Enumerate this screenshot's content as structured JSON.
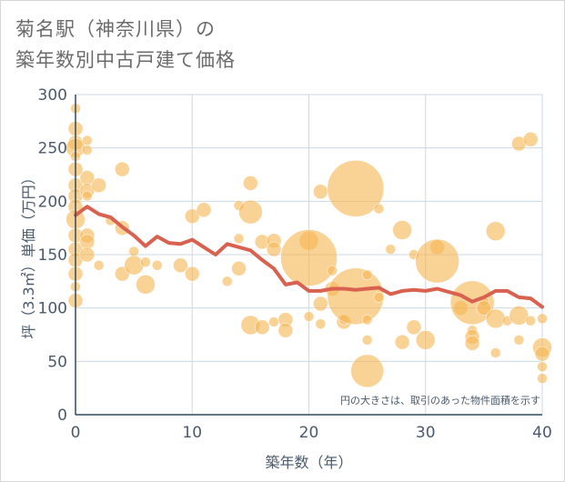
{
  "title": {
    "line1": "菊名駅（神奈川県）の",
    "line2": "築年数別中古戸建て価格"
  },
  "chart_data": {
    "type": "scatter",
    "xlabel": "築年数（年）",
    "ylabel": "坪（3.3㎡）単価（万円）",
    "xlim": [
      0,
      40
    ],
    "ylim": [
      0,
      300
    ],
    "xticks": [
      0,
      10,
      20,
      30,
      40
    ],
    "yticks": [
      0,
      50,
      100,
      150,
      200,
      250,
      300
    ],
    "note": "円の大きさは、取引のあった物件面積を示す",
    "colors": {
      "bubble": "#f5b655",
      "line": "#d9614f",
      "grid": "#cdd8e3",
      "axis": "#2f4a63"
    },
    "bubbles": [
      {
        "x": 0,
        "y": 287,
        "s": 1
      },
      {
        "x": 0,
        "y": 268,
        "s": 2
      },
      {
        "x": 0,
        "y": 255,
        "s": 2
      },
      {
        "x": 0,
        "y": 250,
        "s": 3
      },
      {
        "x": 0,
        "y": 242,
        "s": 1
      },
      {
        "x": 0,
        "y": 230,
        "s": 2
      },
      {
        "x": 0,
        "y": 215,
        "s": 2
      },
      {
        "x": 0,
        "y": 205,
        "s": 2
      },
      {
        "x": 0,
        "y": 195,
        "s": 2
      },
      {
        "x": 0,
        "y": 183,
        "s": 3
      },
      {
        "x": 0,
        "y": 168,
        "s": 2
      },
      {
        "x": 0,
        "y": 155,
        "s": 2
      },
      {
        "x": 0,
        "y": 145,
        "s": 2
      },
      {
        "x": 0,
        "y": 132,
        "s": 2
      },
      {
        "x": 0,
        "y": 120,
        "s": 1
      },
      {
        "x": 0,
        "y": 107,
        "s": 2
      },
      {
        "x": 1,
        "y": 257,
        "s": 1
      },
      {
        "x": 1,
        "y": 248,
        "s": 1
      },
      {
        "x": 1,
        "y": 222,
        "s": 2
      },
      {
        "x": 1,
        "y": 210,
        "s": 2
      },
      {
        "x": 1,
        "y": 205,
        "s": 1
      },
      {
        "x": 1,
        "y": 168,
        "s": 2
      },
      {
        "x": 1,
        "y": 162,
        "s": 2
      },
      {
        "x": 1,
        "y": 150,
        "s": 2
      },
      {
        "x": 2,
        "y": 215,
        "s": 2
      },
      {
        "x": 2,
        "y": 140,
        "s": 1
      },
      {
        "x": 3,
        "y": 182,
        "s": 1
      },
      {
        "x": 4,
        "y": 230,
        "s": 2
      },
      {
        "x": 4,
        "y": 175,
        "s": 2
      },
      {
        "x": 4,
        "y": 132,
        "s": 2
      },
      {
        "x": 5,
        "y": 153,
        "s": 1
      },
      {
        "x": 5,
        "y": 140,
        "s": 3
      },
      {
        "x": 6,
        "y": 143,
        "s": 1
      },
      {
        "x": 6,
        "y": 122,
        "s": 3
      },
      {
        "x": 7,
        "y": 140,
        "s": 1
      },
      {
        "x": 9,
        "y": 140,
        "s": 2
      },
      {
        "x": 10,
        "y": 186,
        "s": 2
      },
      {
        "x": 10,
        "y": 132,
        "s": 2
      },
      {
        "x": 11,
        "y": 192,
        "s": 2
      },
      {
        "x": 13,
        "y": 125,
        "s": 1
      },
      {
        "x": 14,
        "y": 196,
        "s": 1
      },
      {
        "x": 14,
        "y": 137,
        "s": 2
      },
      {
        "x": 14,
        "y": 165,
        "s": 1
      },
      {
        "x": 15,
        "y": 217,
        "s": 2
      },
      {
        "x": 15,
        "y": 190,
        "s": 4
      },
      {
        "x": 15,
        "y": 84,
        "s": 3
      },
      {
        "x": 16,
        "y": 162,
        "s": 2
      },
      {
        "x": 16,
        "y": 82,
        "s": 2
      },
      {
        "x": 17,
        "y": 163,
        "s": 2
      },
      {
        "x": 17,
        "y": 155,
        "s": 2
      },
      {
        "x": 17,
        "y": 87,
        "s": 1
      },
      {
        "x": 18,
        "y": 89,
        "s": 2
      },
      {
        "x": 18,
        "y": 79,
        "s": 2
      },
      {
        "x": 20,
        "y": 163,
        "s": 3
      },
      {
        "x": 20,
        "y": 147,
        "s": 7
      },
      {
        "x": 20,
        "y": 92,
        "s": 1
      },
      {
        "x": 21,
        "y": 209,
        "s": 2
      },
      {
        "x": 21,
        "y": 104,
        "s": 2
      },
      {
        "x": 21,
        "y": 85,
        "s": 1
      },
      {
        "x": 22,
        "y": 135,
        "s": 1
      },
      {
        "x": 22,
        "y": 118,
        "s": 2
      },
      {
        "x": 23,
        "y": 87,
        "s": 2
      },
      {
        "x": 23,
        "y": 89,
        "s": 1
      },
      {
        "x": 24,
        "y": 212,
        "s": 7
      },
      {
        "x": 24,
        "y": 111,
        "s": 7
      },
      {
        "x": 25,
        "y": 131,
        "s": 1
      },
      {
        "x": 25,
        "y": 89,
        "s": 1
      },
      {
        "x": 25,
        "y": 70,
        "s": 1
      },
      {
        "x": 25,
        "y": 41,
        "s": 5
      },
      {
        "x": 26,
        "y": 193,
        "s": 1
      },
      {
        "x": 26,
        "y": 110,
        "s": 1
      },
      {
        "x": 27,
        "y": 155,
        "s": 1
      },
      {
        "x": 28,
        "y": 173,
        "s": 3
      },
      {
        "x": 28,
        "y": 68,
        "s": 2
      },
      {
        "x": 29,
        "y": 150,
        "s": 1
      },
      {
        "x": 29,
        "y": 82,
        "s": 2
      },
      {
        "x": 30,
        "y": 70,
        "s": 3
      },
      {
        "x": 31,
        "y": 157,
        "s": 2
      },
      {
        "x": 31,
        "y": 144,
        "s": 6
      },
      {
        "x": 33,
        "y": 100,
        "s": 2
      },
      {
        "x": 34,
        "y": 105,
        "s": 6
      },
      {
        "x": 34,
        "y": 79,
        "s": 1
      },
      {
        "x": 34,
        "y": 73,
        "s": 2
      },
      {
        "x": 34,
        "y": 67,
        "s": 2
      },
      {
        "x": 35,
        "y": 106,
        "s": 1
      },
      {
        "x": 35,
        "y": 100,
        "s": 2
      },
      {
        "x": 36,
        "y": 172,
        "s": 3
      },
      {
        "x": 36,
        "y": 90,
        "s": 3
      },
      {
        "x": 36,
        "y": 58,
        "s": 1
      },
      {
        "x": 37,
        "y": 88,
        "s": 1
      },
      {
        "x": 38,
        "y": 254,
        "s": 2
      },
      {
        "x": 38,
        "y": 93,
        "s": 3
      },
      {
        "x": 38,
        "y": 70,
        "s": 1
      },
      {
        "x": 39,
        "y": 258,
        "s": 2
      },
      {
        "x": 39,
        "y": 88,
        "s": 1
      },
      {
        "x": 40,
        "y": 90,
        "s": 1
      },
      {
        "x": 40,
        "y": 63,
        "s": 3
      },
      {
        "x": 40,
        "y": 57,
        "s": 2
      },
      {
        "x": 40,
        "y": 45,
        "s": 1
      },
      {
        "x": 40,
        "y": 34,
        "s": 1
      }
    ],
    "trend": {
      "x": [
        0,
        1,
        2,
        3,
        4,
        5,
        6,
        7,
        8,
        9,
        10,
        11,
        12,
        13,
        14,
        15,
        16,
        17,
        18,
        19,
        20,
        21,
        22,
        23,
        24,
        25,
        26,
        27,
        28,
        29,
        30,
        31,
        32,
        33,
        34,
        35,
        36,
        37,
        38,
        39,
        40
      ],
      "y": [
        187,
        195,
        188,
        185,
        176,
        168,
        158,
        167,
        161,
        160,
        164,
        157,
        150,
        160,
        157,
        154,
        145,
        137,
        122,
        124,
        116,
        116,
        118,
        118,
        117,
        118,
        119,
        113,
        116,
        117,
        116,
        118,
        115,
        112,
        106,
        110,
        116,
        116,
        110,
        109,
        101
      ]
    }
  }
}
